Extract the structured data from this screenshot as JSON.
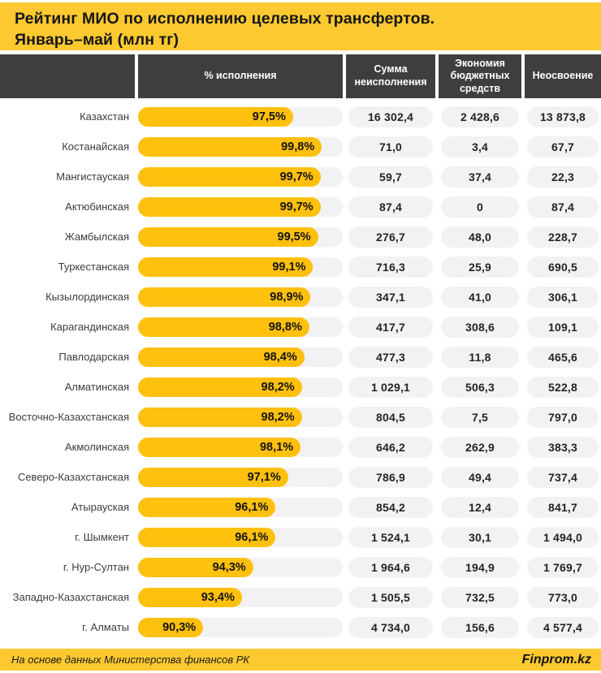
{
  "title": {
    "line1": "Рейтинг МИО по исполнению целевых трансфертов.",
    "line2": "Январь–май  (млн тг)"
  },
  "table": {
    "columns": [
      "% исполнения",
      "Сумма неисполнения",
      "Экономия бюджетных средств",
      "Неосвоение"
    ]
  },
  "rows": [
    {
      "name": "Казахстан",
      "pct": 97.5,
      "pct_label": "97,5%",
      "sum": "16 302,4",
      "economy": "2 428,6",
      "unused": "13 873,8"
    },
    {
      "name": "Костанайская",
      "pct": 99.8,
      "pct_label": "99,8%",
      "sum": "71,0",
      "economy": "3,4",
      "unused": "67,7"
    },
    {
      "name": "Мангистауская",
      "pct": 99.7,
      "pct_label": "99,7%",
      "sum": "59,7",
      "economy": "37,4",
      "unused": "22,3"
    },
    {
      "name": "Актюбинская",
      "pct": 99.7,
      "pct_label": "99,7%",
      "sum": "87,4",
      "economy": "0",
      "unused": "87,4"
    },
    {
      "name": "Жамбылская",
      "pct": 99.5,
      "pct_label": "99,5%",
      "sum": "276,7",
      "economy": "48,0",
      "unused": "228,7"
    },
    {
      "name": "Туркестанская",
      "pct": 99.1,
      "pct_label": "99,1%",
      "sum": "716,3",
      "economy": "25,9",
      "unused": "690,5"
    },
    {
      "name": "Кызылординская",
      "pct": 98.9,
      "pct_label": "98,9%",
      "sum": "347,1",
      "economy": "41,0",
      "unused": "306,1"
    },
    {
      "name": "Карагандинская",
      "pct": 98.8,
      "pct_label": "98,8%",
      "sum": "417,7",
      "economy": "308,6",
      "unused": "109,1"
    },
    {
      "name": "Павлодарская",
      "pct": 98.4,
      "pct_label": "98,4%",
      "sum": "477,3",
      "economy": "11,8",
      "unused": "465,6"
    },
    {
      "name": "Алматинская",
      "pct": 98.2,
      "pct_label": "98,2%",
      "sum": "1 029,1",
      "economy": "506,3",
      "unused": "522,8"
    },
    {
      "name": "Восточно-Казахстанская",
      "pct": 98.2,
      "pct_label": "98,2%",
      "sum": "804,5",
      "economy": "7,5",
      "unused": "797,0"
    },
    {
      "name": "Акмолинская",
      "pct": 98.1,
      "pct_label": "98,1%",
      "sum": "646,2",
      "economy": "262,9",
      "unused": "383,3"
    },
    {
      "name": "Северо-Казахстанская",
      "pct": 97.1,
      "pct_label": "97,1%",
      "sum": "786,9",
      "economy": "49,4",
      "unused": "737,4"
    },
    {
      "name": "Атырауская",
      "pct": 96.1,
      "pct_label": "96,1%",
      "sum": "854,2",
      "economy": "12,4",
      "unused": "841,7"
    },
    {
      "name": "г. Шымкент",
      "pct": 96.1,
      "pct_label": "96,1%",
      "sum": "1 524,1",
      "economy": "30,1",
      "unused": "1 494,0"
    },
    {
      "name": "г. Нур-Султан",
      "pct": 94.3,
      "pct_label": "94,3%",
      "sum": "1 964,6",
      "economy": "194,9",
      "unused": "1 769,7"
    },
    {
      "name": "Западно-Казахстанская",
      "pct": 93.4,
      "pct_label": "93,4%",
      "sum": "1 505,5",
      "economy": "732,5",
      "unused": "773,0"
    },
    {
      "name": "г. Алматы",
      "pct": 90.3,
      "pct_label": "90,3%",
      "sum": "4 734,0",
      "economy": "156,6",
      "unused": "4 577,4"
    }
  ],
  "chart_data": {
    "type": "bar",
    "orientation": "horizontal",
    "title": "Рейтинг МИО по исполнению целевых трансфертов. Январь–май (млн тг)",
    "categories": [
      "Казахстан",
      "Костанайская",
      "Мангистауская",
      "Актюбинская",
      "Жамбылская",
      "Туркестанская",
      "Кызылординская",
      "Карагандинская",
      "Павлодарская",
      "Алматинская",
      "Восточно-Казахстанская",
      "Акмолинская",
      "Северо-Казахстанская",
      "Атырауская",
      "г. Шымкент",
      "г. Нур-Султан",
      "Западно-Казахстанская",
      "г. Алматы"
    ],
    "series": [
      {
        "name": "% исполнения",
        "unit": "%",
        "values": [
          97.5,
          99.8,
          99.7,
          99.7,
          99.5,
          99.1,
          98.9,
          98.8,
          98.4,
          98.2,
          98.2,
          98.1,
          97.1,
          96.1,
          96.1,
          94.3,
          93.4,
          90.3
        ]
      },
      {
        "name": "Сумма неисполнения",
        "unit": "млн тг",
        "values": [
          16302.4,
          71.0,
          59.7,
          87.4,
          276.7,
          716.3,
          347.1,
          417.7,
          477.3,
          1029.1,
          804.5,
          646.2,
          786.9,
          854.2,
          1524.1,
          1964.6,
          1505.5,
          4734.0
        ]
      },
      {
        "name": "Экономия бюджетных средств",
        "unit": "млн тг",
        "values": [
          2428.6,
          3.4,
          37.4,
          0,
          48.0,
          25.9,
          41.0,
          308.6,
          11.8,
          506.3,
          7.5,
          262.9,
          49.4,
          12.4,
          30.1,
          194.9,
          732.5,
          156.6
        ]
      },
      {
        "name": "Неосвоение",
        "unit": "млн тг",
        "values": [
          13873.8,
          67.7,
          22.3,
          87.4,
          228.7,
          690.5,
          306.1,
          109.1,
          465.6,
          522.8,
          797.0,
          383.3,
          737.4,
          841.7,
          1494.0,
          1769.7,
          773.0,
          4577.4
        ]
      }
    ],
    "legend": false,
    "grid": false,
    "bar_axis_range_pct": [
      85.1,
      101.5
    ]
  },
  "footer": {
    "source": "На основе данных Министерства финансов РК",
    "brand": "Finprom.kz"
  },
  "colors": {
    "accent_yellow": "#FDC930",
    "bar_yellow": "#FFC00E",
    "header_dark": "#3E3E3E",
    "pill_gray": "#F2F2F4",
    "text_dark": "#1D1D1D"
  }
}
